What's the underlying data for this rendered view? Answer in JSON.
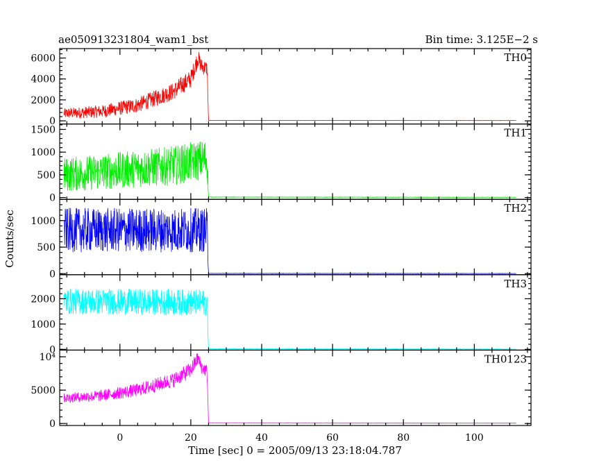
{
  "header": {
    "title": "ae050913231804_wam1_bst",
    "bin_time": "Bin time: 3.125E−2 s"
  },
  "chart_data": {
    "type": "line",
    "xlabel": "Time [sec] 0 = 2005/09/13 23:18:04.787",
    "ylabel": "Counts/sec",
    "xlim": [
      -17,
      116
    ],
    "x_ticks": [
      0,
      20,
      40,
      60,
      80,
      100
    ],
    "panels": [
      {
        "name": "TH0",
        "color": "#ff0000",
        "ylim": [
          -300,
          6900
        ],
        "y_ticks": [
          0,
          2000,
          4000,
          6000
        ],
        "y_tick_labels": [
          "0",
          "2000",
          "4000",
          "6000"
        ],
        "profile": [
          [
            -16,
            700
          ],
          [
            -5,
            900
          ],
          [
            5,
            1500
          ],
          [
            15,
            2800
          ],
          [
            20,
            4000
          ],
          [
            22,
            6000
          ],
          [
            23,
            5200
          ],
          [
            24.6,
            5000
          ],
          [
            25,
            40
          ],
          [
            112,
            30
          ]
        ],
        "noise": [
          [
            -16,
            500
          ],
          [
            20,
            900
          ],
          [
            24.6,
            700
          ],
          [
            25,
            10
          ],
          [
            112,
            10
          ]
        ]
      },
      {
        "name": "TH1",
        "color": "#00ee00",
        "ylim": [
          -40,
          1620
        ],
        "y_ticks": [
          0,
          500,
          1000,
          1500
        ],
        "y_tick_labels": [
          "0",
          "500",
          "1000",
          "1500"
        ],
        "profile": [
          [
            -16,
            500
          ],
          [
            0,
            600
          ],
          [
            15,
            700
          ],
          [
            24.6,
            850
          ],
          [
            25,
            10
          ],
          [
            112,
            5
          ]
        ],
        "noise": [
          [
            -16,
            380
          ],
          [
            24.6,
            450
          ],
          [
            25,
            5
          ],
          [
            112,
            5
          ]
        ]
      },
      {
        "name": "TH2",
        "color": "#0000ff",
        "ylim": [
          -20,
          1400
        ],
        "y_ticks": [
          0,
          500,
          1000
        ],
        "y_tick_labels": [
          "0",
          "500",
          "1000"
        ],
        "profile": [
          [
            -16,
            820
          ],
          [
            24.6,
            820
          ],
          [
            25,
            5
          ],
          [
            112,
            3
          ]
        ],
        "noise": [
          [
            -16,
            420
          ],
          [
            24.6,
            420
          ],
          [
            25,
            3
          ],
          [
            112,
            3
          ]
        ]
      },
      {
        "name": "TH3",
        "color": "#00ffff",
        "ylim": [
          -30,
          2950
        ],
        "y_ticks": [
          0,
          1000,
          2000
        ],
        "y_tick_labels": [
          "0",
          "1000",
          "2000"
        ],
        "profile": [
          [
            -16,
            1900
          ],
          [
            24.6,
            1850
          ],
          [
            25,
            20
          ],
          [
            112,
            10
          ]
        ],
        "noise": [
          [
            -16,
            520
          ],
          [
            24.6,
            520
          ],
          [
            25,
            10
          ],
          [
            112,
            10
          ]
        ]
      },
      {
        "name": "TH0123",
        "color": "#ff00ff",
        "ylim": [
          -300,
          11000
        ],
        "y_ticks": [
          0,
          5000,
          10000
        ],
        "y_tick_labels": [
          "0",
          "5000",
          "10⁴"
        ],
        "profile": [
          [
            -16,
            3800
          ],
          [
            -5,
            4200
          ],
          [
            5,
            5000
          ],
          [
            15,
            6500
          ],
          [
            20,
            8000
          ],
          [
            22,
            9800
          ],
          [
            23,
            8500
          ],
          [
            24.6,
            7800
          ],
          [
            25,
            100
          ],
          [
            112,
            60
          ]
        ],
        "noise": [
          [
            -16,
            700
          ],
          [
            20,
            1200
          ],
          [
            24.6,
            1000
          ],
          [
            25,
            20
          ],
          [
            112,
            20
          ]
        ]
      }
    ]
  }
}
